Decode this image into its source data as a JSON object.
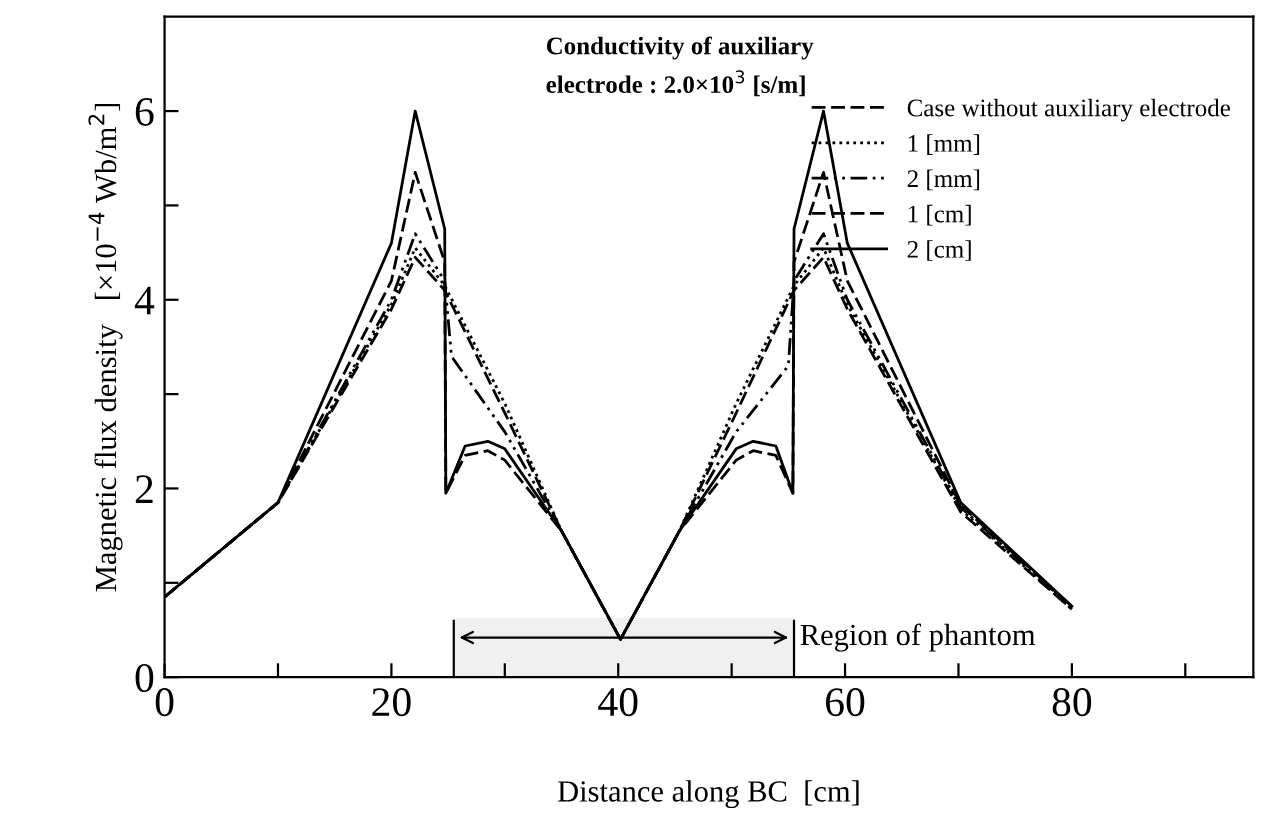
{
  "chart_data": {
    "type": "line",
    "xlabel": "Distance along BC  [cm]",
    "ylabel": "Magnetic flux density   [×10$^{−4}$ Wb/m$^{2}$]",
    "annotations": [
      "Conductivity of auxiliary\nelectrode : 2.0×10$^{3}$ [s/m]"
    ],
    "xlim": [
      0,
      96
    ],
    "ylim": [
      0,
      7
    ],
    "xticks": [
      0,
      {
        "value": 10,
        "label": null
      },
      20,
      {
        "value": 30,
        "label": null
      },
      40,
      {
        "value": 50,
        "label": null
      },
      60,
      {
        "value": 70,
        "label": null
      },
      80,
      {
        "value": 90,
        "label": null
      }
    ],
    "yticks": [
      0,
      {
        "value": 1,
        "label": null
      },
      2,
      {
        "value": 3,
        "label": null
      },
      4,
      {
        "value": 5,
        "label": null
      },
      6
    ],
    "legend": "top right",
    "grid": false,
    "bands": [
      {
        "axis": "x",
        "from": 25.5,
        "to": 55.5,
        "label": "Region of phantom",
        "color": "#f0f0f0"
      }
    ],
    "series": [
      {
        "name": "Case without auxiliary electrode",
        "color": "#000000",
        "line_style": "dashed",
        "x": [
          0,
          10,
          20,
          22.1,
          24.7,
          30,
          35,
          40.2,
          45.4,
          50.4,
          55.5,
          58.1,
          60.2,
          70.2,
          80
        ],
        "values": [
          0.85,
          1.85,
          3.9,
          4.45,
          4.1,
          2.8,
          1.55,
          0.4,
          1.55,
          2.8,
          4.1,
          4.45,
          3.9,
          1.75,
          0.72
        ]
      },
      {
        "name": "1 [mm]",
        "color": "#000000",
        "line_style": "dotted",
        "x": [
          0,
          10,
          20,
          22.1,
          24.7,
          30,
          35,
          40.2,
          45.4,
          50.4,
          55.5,
          58.1,
          60.2,
          70.2,
          80
        ],
        "values": [
          0.85,
          1.85,
          3.95,
          4.55,
          4.15,
          2.9,
          1.55,
          0.4,
          1.55,
          2.9,
          4.15,
          4.55,
          3.95,
          1.78,
          0.72
        ]
      },
      {
        "name": "2 [mm]",
        "color": "#000000",
        "line_style": "dashdot",
        "x": [
          0,
          10,
          20,
          22.1,
          24.7,
          25.3,
          30,
          35,
          40.2,
          45.4,
          50.4,
          55.0,
          55.5,
          58.1,
          60.2,
          70.2,
          80
        ],
        "values": [
          0.85,
          1.85,
          4.0,
          4.7,
          4.2,
          3.4,
          2.6,
          1.55,
          0.4,
          1.55,
          2.6,
          3.3,
          4.2,
          4.7,
          4.0,
          1.8,
          0.74
        ]
      },
      {
        "name": "1 [cm]",
        "color": "#000000",
        "line_style": "dashed",
        "x": [
          0,
          10,
          20,
          22.1,
          24.7,
          24.8,
          26.5,
          28.5,
          30,
          35,
          40.2,
          45.4,
          50.4,
          51.9,
          53.9,
          55.4,
          55.5,
          58.1,
          60.2,
          70.2,
          80
        ],
        "values": [
          0.85,
          1.85,
          4.2,
          5.35,
          4.4,
          1.95,
          2.35,
          2.4,
          2.3,
          1.55,
          0.4,
          1.55,
          2.3,
          2.4,
          2.35,
          1.95,
          4.4,
          5.35,
          4.2,
          1.82,
          0.75
        ]
      },
      {
        "name": "2 [cm]",
        "color": "#000000",
        "line_style": "solid",
        "x": [
          0,
          10,
          20,
          22.1,
          24.7,
          24.8,
          26.5,
          28.5,
          30,
          35,
          40.2,
          45.4,
          50.4,
          51.9,
          53.9,
          55.4,
          55.5,
          58.1,
          60.2,
          70.2,
          80
        ],
        "values": [
          0.85,
          1.85,
          4.6,
          6.0,
          4.75,
          1.95,
          2.45,
          2.5,
          2.42,
          1.55,
          0.4,
          1.55,
          2.42,
          2.5,
          2.45,
          1.95,
          4.75,
          6.0,
          4.6,
          1.85,
          0.75
        ]
      }
    ]
  }
}
